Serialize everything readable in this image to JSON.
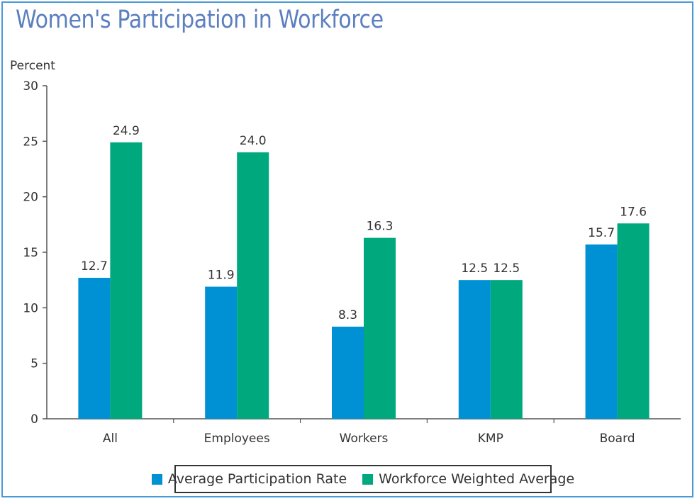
{
  "colors": {
    "frame": "#4a9ad6",
    "title": "#5b7fbf",
    "series1": "#0091d4",
    "series2": "#00a87e"
  },
  "chart_data": {
    "type": "bar",
    "title": "Women's Participation in Workforce",
    "ylabel": "Percent",
    "xlabel": "",
    "ylim": [
      0,
      30
    ],
    "yticks": [
      0,
      5,
      10,
      15,
      20,
      25,
      30
    ],
    "categories": [
      "All",
      "Employees",
      "Workers",
      "KMP",
      "Board"
    ],
    "series": [
      {
        "name": "Average Participation Rate",
        "values": [
          12.7,
          11.9,
          8.3,
          12.5,
          15.7
        ],
        "labels": [
          "12.7",
          "11.9",
          "8.3",
          "12.5",
          "15.7"
        ]
      },
      {
        "name": "Workforce Weighted Average",
        "values": [
          24.9,
          24.0,
          16.3,
          12.5,
          17.6
        ],
        "labels": [
          "24.9",
          "24.0",
          "16.3",
          "12.5",
          "17.6"
        ]
      }
    ],
    "legend_position": "bottom",
    "grid": false
  }
}
